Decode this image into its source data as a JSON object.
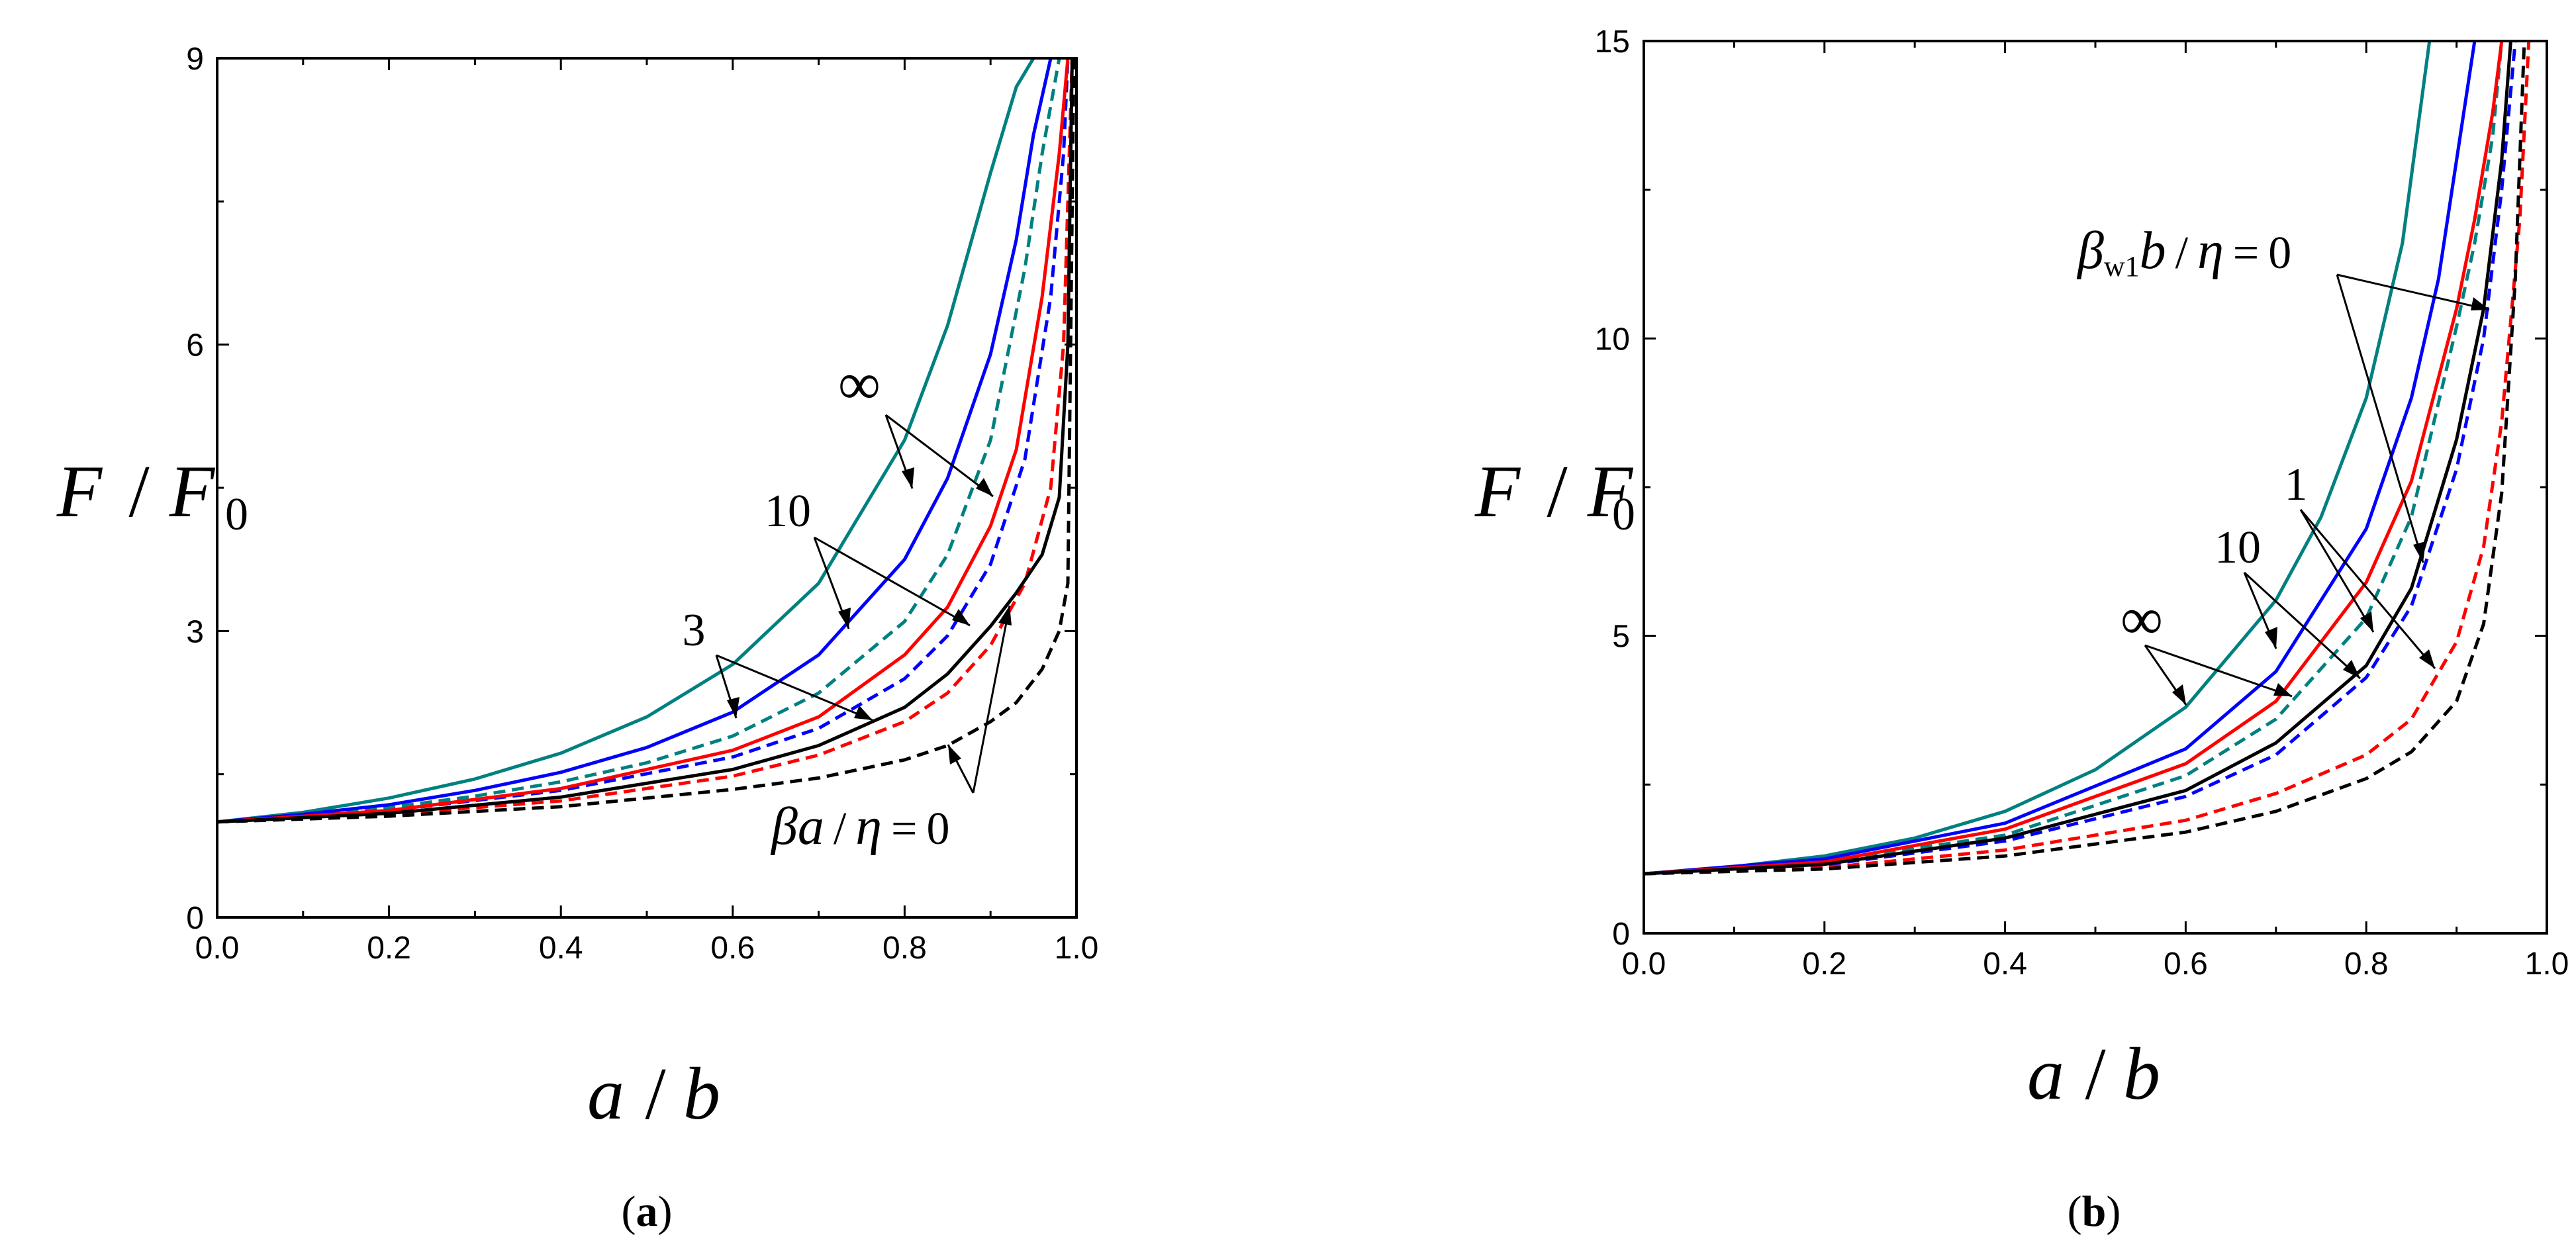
{
  "chart_data": [
    {
      "type": "line",
      "panel_label": "a",
      "caption_open": "(",
      "caption_close": ")",
      "xlabel": {
        "num": "a",
        "sep": "/",
        "den": "b"
      },
      "ylabel": {
        "num": "F",
        "sep": "/",
        "den": "F",
        "sub": "0"
      },
      "xlim": [
        0,
        1
      ],
      "ylim": [
        0,
        9
      ],
      "xticks": [
        "0.0",
        "0.2",
        "0.4",
        "0.6",
        "0.8",
        "1.0"
      ],
      "yticks": [
        "0",
        "3",
        "6",
        "9"
      ],
      "series": [
        {
          "name": "∞ solid",
          "color": "#008080",
          "dash": "solid",
          "x": [
            0,
            0.1,
            0.2,
            0.3,
            0.4,
            0.5,
            0.6,
            0.7,
            0.8,
            0.85,
            0.9,
            0.93,
            0.95
          ],
          "y": [
            1.0,
            1.1,
            1.25,
            1.45,
            1.72,
            2.1,
            2.65,
            3.5,
            5.0,
            6.2,
            7.8,
            8.7,
            9
          ]
        },
        {
          "name": "∞ dashed",
          "color": "#008080",
          "dash": "dashed",
          "x": [
            0,
            0.1,
            0.2,
            0.3,
            0.4,
            0.5,
            0.6,
            0.7,
            0.8,
            0.85,
            0.9,
            0.94,
            0.96,
            0.98
          ],
          "y": [
            1.0,
            1.07,
            1.15,
            1.27,
            1.42,
            1.62,
            1.9,
            2.35,
            3.1,
            3.8,
            5.0,
            6.8,
            8.0,
            9
          ]
        },
        {
          "name": "10 solid",
          "color": "#0000ff",
          "dash": "solid",
          "x": [
            0,
            0.1,
            0.2,
            0.3,
            0.4,
            0.5,
            0.6,
            0.7,
            0.8,
            0.85,
            0.9,
            0.93,
            0.95,
            0.97
          ],
          "y": [
            1.0,
            1.08,
            1.18,
            1.33,
            1.52,
            1.78,
            2.15,
            2.75,
            3.75,
            4.6,
            5.9,
            7.1,
            8.2,
            9
          ]
        },
        {
          "name": "10 dashed",
          "color": "#0000ff",
          "dash": "dashed",
          "x": [
            0,
            0.2,
            0.4,
            0.6,
            0.7,
            0.8,
            0.85,
            0.9,
            0.94,
            0.97,
            0.985,
            0.99
          ],
          "y": [
            1.0,
            1.12,
            1.33,
            1.68,
            1.98,
            2.5,
            2.95,
            3.7,
            4.8,
            6.5,
            8.0,
            9
          ]
        },
        {
          "name": "3 solid",
          "color": "#ff0000",
          "dash": "solid",
          "x": [
            0,
            0.2,
            0.4,
            0.6,
            0.7,
            0.8,
            0.85,
            0.9,
            0.93,
            0.96,
            0.98,
            0.99
          ],
          "y": [
            1.0,
            1.12,
            1.35,
            1.75,
            2.1,
            2.75,
            3.25,
            4.1,
            4.9,
            6.5,
            8.0,
            9
          ]
        },
        {
          "name": "3 dashed",
          "color": "#ff0000",
          "dash": "dashed",
          "x": [
            0,
            0.2,
            0.4,
            0.6,
            0.7,
            0.8,
            0.85,
            0.9,
            0.94,
            0.97,
            0.985,
            0.995
          ],
          "y": [
            1.0,
            1.08,
            1.22,
            1.48,
            1.7,
            2.05,
            2.35,
            2.85,
            3.5,
            4.5,
            6.0,
            9
          ]
        },
        {
          "name": "βa/η=0 solid",
          "color": "#000000",
          "dash": "solid",
          "x": [
            0,
            0.2,
            0.4,
            0.6,
            0.7,
            0.8,
            0.85,
            0.9,
            0.93,
            0.96,
            0.98,
            0.99,
            0.995
          ],
          "y": [
            1.0,
            1.09,
            1.26,
            1.55,
            1.8,
            2.2,
            2.55,
            3.05,
            3.4,
            3.8,
            4.4,
            6.0,
            9
          ]
        },
        {
          "name": "βa/η=0 dashed",
          "color": "#000000",
          "dash": "dashed",
          "x": [
            0,
            0.2,
            0.4,
            0.6,
            0.7,
            0.8,
            0.85,
            0.9,
            0.93,
            0.96,
            0.98,
            0.99,
            0.997
          ],
          "y": [
            1.0,
            1.06,
            1.16,
            1.34,
            1.46,
            1.65,
            1.8,
            2.05,
            2.25,
            2.6,
            3.0,
            3.5,
            9
          ]
        }
      ],
      "annotations": [
        {
          "text": "∞"
        },
        {
          "text": "10"
        },
        {
          "text": "3"
        },
        {
          "prefix": "β",
          "var": "a",
          "sep": "/",
          "den": "η",
          "eq": "=",
          "val": "0"
        }
      ]
    },
    {
      "type": "line",
      "panel_label": "b",
      "caption_open": "(",
      "caption_close": ")",
      "xlabel": {
        "num": "a",
        "sep": "/",
        "den": "b"
      },
      "ylabel": {
        "num": "F",
        "sep": "/",
        "den": "F",
        "sub": "0"
      },
      "xlim": [
        0,
        1
      ],
      "ylim": [
        0,
        15
      ],
      "xticks": [
        "0.0",
        "0.2",
        "0.4",
        "0.6",
        "0.8",
        "1.0"
      ],
      "yticks": [
        "0",
        "5",
        "10",
        "15"
      ],
      "series": [
        {
          "name": "∞ solid",
          "color": "#008080",
          "dash": "solid",
          "x": [
            0,
            0.1,
            0.2,
            0.3,
            0.4,
            0.5,
            0.6,
            0.7,
            0.75,
            0.8,
            0.82,
            0.84,
            0.87
          ],
          "y": [
            1.0,
            1.12,
            1.3,
            1.6,
            2.05,
            2.75,
            3.8,
            5.6,
            7.0,
            9.0,
            10.3,
            11.6,
            15
          ]
        },
        {
          "name": "∞ dashed",
          "color": "#008080",
          "dash": "dashed",
          "x": [
            0,
            0.2,
            0.4,
            0.6,
            0.7,
            0.8,
            0.85,
            0.9,
            0.92,
            0.94,
            0.95
          ],
          "y": [
            1.0,
            1.2,
            1.65,
            2.65,
            3.6,
            5.3,
            7.0,
            10.2,
            11.6,
            13.4,
            15
          ]
        },
        {
          "name": "10 solid",
          "color": "#0000ff",
          "dash": "solid",
          "x": [
            0,
            0.2,
            0.4,
            0.6,
            0.7,
            0.8,
            0.85,
            0.88,
            0.9,
            0.92
          ],
          "y": [
            1.0,
            1.25,
            1.85,
            3.1,
            4.4,
            6.8,
            9.0,
            11.0,
            13.0,
            15
          ]
        },
        {
          "name": "10 dashed",
          "color": "#0000ff",
          "dash": "dashed",
          "x": [
            0,
            0.2,
            0.4,
            0.6,
            0.7,
            0.8,
            0.85,
            0.9,
            0.93,
            0.95,
            0.965
          ],
          "y": [
            1.0,
            1.15,
            1.55,
            2.3,
            3.0,
            4.3,
            5.5,
            7.8,
            10.0,
            12.5,
            15
          ]
        },
        {
          "name": "1 solid",
          "color": "#ff0000",
          "dash": "solid",
          "x": [
            0,
            0.2,
            0.4,
            0.6,
            0.7,
            0.8,
            0.85,
            0.9,
            0.92,
            0.94,
            0.95
          ],
          "y": [
            1.0,
            1.2,
            1.75,
            2.85,
            3.9,
            5.9,
            7.6,
            10.5,
            12.0,
            13.8,
            15
          ]
        },
        {
          "name": "1 dashed",
          "color": "#ff0000",
          "dash": "dashed",
          "x": [
            0,
            0.2,
            0.4,
            0.6,
            0.7,
            0.8,
            0.85,
            0.9,
            0.93,
            0.95,
            0.97,
            0.98
          ],
          "y": [
            1.0,
            1.1,
            1.4,
            1.9,
            2.35,
            3.0,
            3.6,
            4.9,
            6.5,
            8.6,
            12.0,
            15
          ]
        },
        {
          "name": "βw1b/η=0 solid",
          "color": "#000000",
          "dash": "solid",
          "x": [
            0,
            0.2,
            0.4,
            0.6,
            0.7,
            0.8,
            0.85,
            0.9,
            0.93,
            0.95,
            0.96
          ],
          "y": [
            1.0,
            1.16,
            1.6,
            2.4,
            3.2,
            4.5,
            5.8,
            8.3,
            10.5,
            13.0,
            15
          ]
        },
        {
          "name": "βw1b/η=0 dashed",
          "color": "#000000",
          "dash": "dashed",
          "x": [
            0,
            0.2,
            0.4,
            0.6,
            0.7,
            0.8,
            0.85,
            0.9,
            0.93,
            0.95,
            0.965,
            0.975
          ],
          "y": [
            1.0,
            1.08,
            1.3,
            1.7,
            2.05,
            2.6,
            3.05,
            3.9,
            5.2,
            7.4,
            11.0,
            15
          ]
        }
      ],
      "annotations": [
        {
          "prefix": "β",
          "sub": "w1",
          "var": "b",
          "sep": "/",
          "den": "η",
          "eq": "=",
          "val": "0"
        },
        {
          "text": "1"
        },
        {
          "text": "10"
        },
        {
          "text": "∞"
        }
      ]
    }
  ]
}
